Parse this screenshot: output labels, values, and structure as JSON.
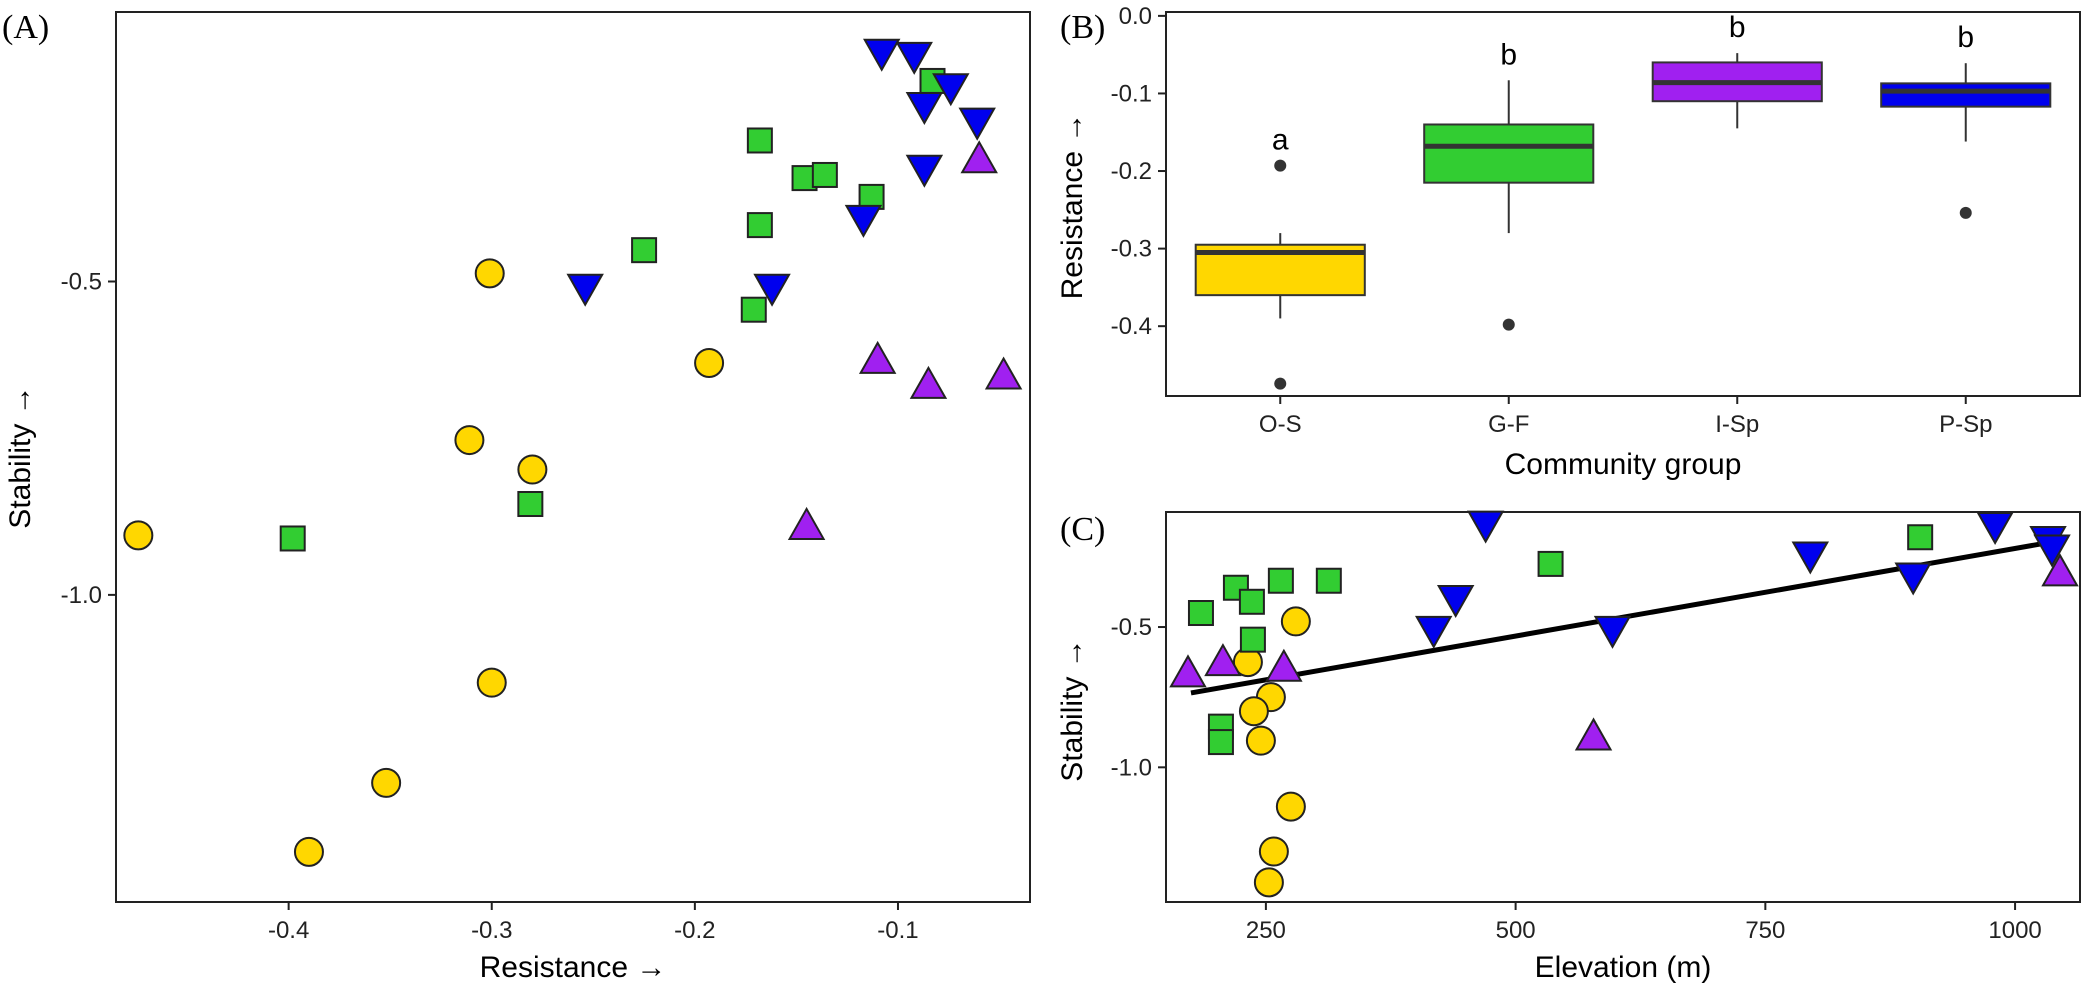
{
  "chart_data": [
    {
      "panel": "(A)",
      "type": "scatter",
      "xlabel": "Resistance →",
      "ylabel": "Stability →",
      "xlim": [
        -0.485,
        -0.035
      ],
      "ylim": [
        -1.49,
        -0.07
      ],
      "xticks": [
        -0.4,
        -0.3,
        -0.2,
        -0.1
      ],
      "xtick_labels": [
        "-0.4",
        "-0.3",
        "-0.2",
        "-0.1"
      ],
      "yticks": [
        -1.0,
        -0.5
      ],
      "ytick_labels": [
        "-1.0",
        "-0.5"
      ],
      "grid": false,
      "series": [
        {
          "group": "O-S",
          "marker": "circle",
          "color": "#FFD700",
          "points": [
            [
              -0.474,
              -0.905
            ],
            [
              -0.301,
              -0.487
            ],
            [
              -0.193,
              -0.63
            ],
            [
              -0.311,
              -0.753
            ],
            [
              -0.28,
              -0.8
            ],
            [
              -0.3,
              -1.14
            ],
            [
              -0.352,
              -1.3
            ],
            [
              -0.39,
              -1.41
            ]
          ]
        },
        {
          "group": "G-F",
          "marker": "square",
          "color": "#32CD32",
          "points": [
            [
              -0.083,
              -0.18
            ],
            [
              -0.168,
              -0.275
            ],
            [
              -0.146,
              -0.335
            ],
            [
              -0.136,
              -0.33
            ],
            [
              -0.113,
              -0.365
            ],
            [
              -0.168,
              -0.41
            ],
            [
              -0.225,
              -0.45
            ],
            [
              -0.171,
              -0.545
            ],
            [
              -0.281,
              -0.855
            ],
            [
              -0.398,
              -0.91
            ]
          ]
        },
        {
          "group": "I-Sp",
          "marker": "triangle-up",
          "color": "#A020F0",
          "points": [
            [
              -0.06,
              -0.305
            ],
            [
              -0.11,
              -0.625
            ],
            [
              -0.085,
              -0.665
            ],
            [
              -0.048,
              -0.65
            ],
            [
              -0.145,
              -0.89
            ]
          ]
        },
        {
          "group": "P-Sp",
          "marker": "triangle-down",
          "color": "#0000EE",
          "points": [
            [
              -0.108,
              -0.135
            ],
            [
              -0.092,
              -0.14
            ],
            [
              -0.074,
              -0.19
            ],
            [
              -0.087,
              -0.22
            ],
            [
              -0.061,
              -0.245
            ],
            [
              -0.087,
              -0.32
            ],
            [
              -0.117,
              -0.4
            ],
            [
              -0.254,
              -0.51
            ],
            [
              -0.162,
              -0.51
            ]
          ]
        }
      ]
    },
    {
      "panel": "(B)",
      "type": "box",
      "xlabel": "Community group",
      "ylabel": "Resistance →",
      "ylim": [
        -0.49,
        0.005
      ],
      "yticks": [
        0.0,
        -0.1,
        -0.2,
        -0.3,
        -0.4
      ],
      "ytick_labels": [
        "0.0",
        "-0.1",
        "-0.2",
        "-0.3",
        "-0.4"
      ],
      "categories": [
        "O-S",
        "G-F",
        "I-Sp",
        "P-Sp"
      ],
      "boxes": [
        {
          "group": "O-S",
          "color": "#FFD700",
          "whisker_low": -0.39,
          "q1": -0.36,
          "median": -0.305,
          "q3": -0.295,
          "whisker_high": -0.28,
          "outliers": [
            -0.193,
            -0.474
          ],
          "letter": "a"
        },
        {
          "group": "G-F",
          "color": "#32CD32",
          "whisker_low": -0.28,
          "q1": -0.215,
          "median": -0.168,
          "q3": -0.14,
          "whisker_high": -0.083,
          "outliers": [
            -0.398
          ],
          "letter": "b"
        },
        {
          "group": "I-Sp",
          "color": "#A020F0",
          "whisker_low": -0.145,
          "q1": -0.11,
          "median": -0.086,
          "q3": -0.06,
          "whisker_high": -0.048,
          "outliers": [],
          "letter": "b"
        },
        {
          "group": "P-Sp",
          "color": "#0000EE",
          "whisker_low": -0.162,
          "q1": -0.117,
          "median": -0.097,
          "q3": -0.087,
          "whisker_high": -0.061,
          "outliers": [
            -0.254
          ],
          "letter": "b"
        }
      ]
    },
    {
      "panel": "(C)",
      "type": "scatter",
      "xlabel": "Elevation (m)",
      "ylabel": "Stability →",
      "xlim": [
        150,
        1065
      ],
      "ylim": [
        -1.48,
        -0.09
      ],
      "xticks": [
        250,
        500,
        750,
        1000
      ],
      "xtick_labels": [
        "250",
        "500",
        "750",
        "1000"
      ],
      "yticks": [
        -1.0,
        -0.5
      ],
      "ytick_labels": [
        "-1.0",
        "-0.5"
      ],
      "grid": false,
      "trend_line": {
        "x": [
          175,
          1040
        ],
        "y": [
          -0.735,
          -0.195
        ]
      },
      "series": [
        {
          "group": "O-S",
          "marker": "circle",
          "color": "#FFD700",
          "points": [
            [
              280,
              -0.48
            ],
            [
              232,
              -0.625
            ],
            [
              255,
              -0.75
            ],
            [
              238,
              -0.8
            ],
            [
              245,
              -0.905
            ],
            [
              275,
              -1.14
            ],
            [
              258,
              -1.3
            ],
            [
              253,
              -1.41
            ]
          ]
        },
        {
          "group": "G-F",
          "marker": "square",
          "color": "#32CD32",
          "points": [
            [
              905,
              -0.18
            ],
            [
              535,
              -0.275
            ],
            [
              265,
              -0.335
            ],
            [
              313,
              -0.335
            ],
            [
              220,
              -0.36
            ],
            [
              236,
              -0.41
            ],
            [
              185,
              -0.45
            ],
            [
              237,
              -0.545
            ],
            [
              205,
              -0.855
            ],
            [
              205,
              -0.91
            ]
          ]
        },
        {
          "group": "I-Sp",
          "marker": "triangle-up",
          "color": "#A020F0",
          "points": [
            [
              1045,
              -0.305
            ],
            [
              207,
              -0.625
            ],
            [
              268,
              -0.645
            ],
            [
              172,
              -0.665
            ],
            [
              578,
              -0.89
            ]
          ]
        },
        {
          "group": "P-Sp",
          "marker": "triangle-down",
          "color": "#0000EE",
          "points": [
            [
              470,
              -0.135
            ],
            [
              980,
              -0.14
            ],
            [
              1033,
              -0.19
            ],
            [
              1037,
              -0.22
            ],
            [
              795,
              -0.245
            ],
            [
              898,
              -0.32
            ],
            [
              440,
              -0.4
            ],
            [
              418,
              -0.51
            ],
            [
              597,
              -0.51
            ]
          ]
        }
      ]
    }
  ]
}
